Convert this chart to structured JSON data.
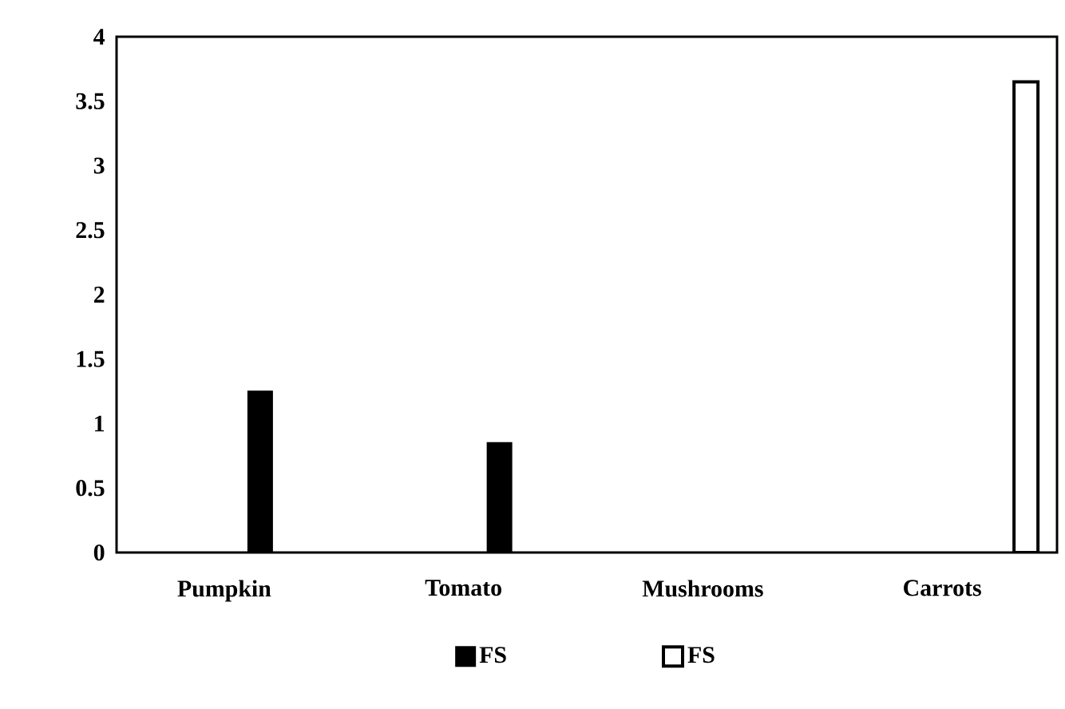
{
  "chart_data": {
    "type": "bar",
    "categories": [
      "Pumpkin",
      "Tomato",
      "Mushrooms",
      "Carrots"
    ],
    "series": [
      {
        "name": "FS",
        "color": "#000000",
        "values": [
          1.25,
          0.85,
          null,
          null
        ]
      },
      {
        "name": "FS",
        "color": "#000000",
        "values": [
          null,
          null,
          null,
          3.65
        ]
      }
    ],
    "ylim": [
      0,
      4
    ],
    "yticks": [
      0,
      0.5,
      1,
      1.5,
      2,
      2.5,
      3,
      3.5,
      4
    ],
    "grid": false,
    "legend": "bottom"
  }
}
